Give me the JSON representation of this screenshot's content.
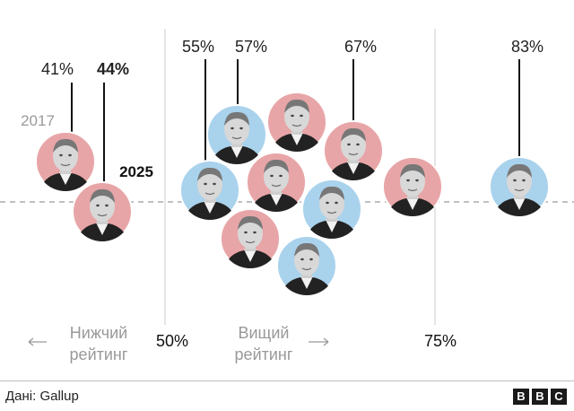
{
  "chart_data": {
    "type": "scatter",
    "axis": {
      "ticks": [
        {
          "value": 50,
          "label": "50%"
        },
        {
          "value": 75,
          "label": "75%"
        }
      ],
      "low_label": [
        "Нижчий",
        "рейтинг"
      ],
      "high_label": [
        "Вищий",
        "рейтинг"
      ]
    },
    "series": [
      {
        "id": "trump-2017",
        "value": 41,
        "label": "41%",
        "bold": false,
        "party": "rep",
        "note": "2017"
      },
      {
        "id": "trump-2025",
        "value": 44,
        "label": "44%",
        "bold": true,
        "party": "rep",
        "note": "2025"
      },
      {
        "id": "clinton",
        "value": 55,
        "label": "55%",
        "bold": false,
        "party": "dem"
      },
      {
        "id": "biden",
        "value": 57,
        "label": "57%",
        "bold": false,
        "party": "dem"
      },
      {
        "id": "gw-bush",
        "value": 57,
        "label": "",
        "bold": false,
        "party": "rep"
      },
      {
        "id": "nixon",
        "value": 60,
        "label": "",
        "bold": false,
        "party": "rep"
      },
      {
        "id": "hw-bush",
        "value": 51,
        "label": "",
        "bold": false,
        "party": "rep"
      },
      {
        "id": "obama",
        "value": 65,
        "label": "",
        "bold": false,
        "party": "dem"
      },
      {
        "id": "carter",
        "value": 66,
        "label": "",
        "bold": false,
        "party": "dem"
      },
      {
        "id": "reagan",
        "value": 67,
        "label": "67%",
        "bold": false,
        "party": "rep"
      },
      {
        "id": "eisenhower",
        "value": 68,
        "label": "",
        "bold": false,
        "party": "rep"
      },
      {
        "id": "kennedy",
        "value": 83,
        "label": "83%",
        "bold": false,
        "party": "dem"
      }
    ],
    "colors": {
      "rep": "#e8a5a7",
      "dem": "#a9d2ec",
      "grid": "#cccccc",
      "dash": "#9a9a9a",
      "note": "#9a9a9a"
    }
  },
  "footer": {
    "source": "Дані: Gallup",
    "logo": [
      "B",
      "B",
      "C"
    ]
  }
}
